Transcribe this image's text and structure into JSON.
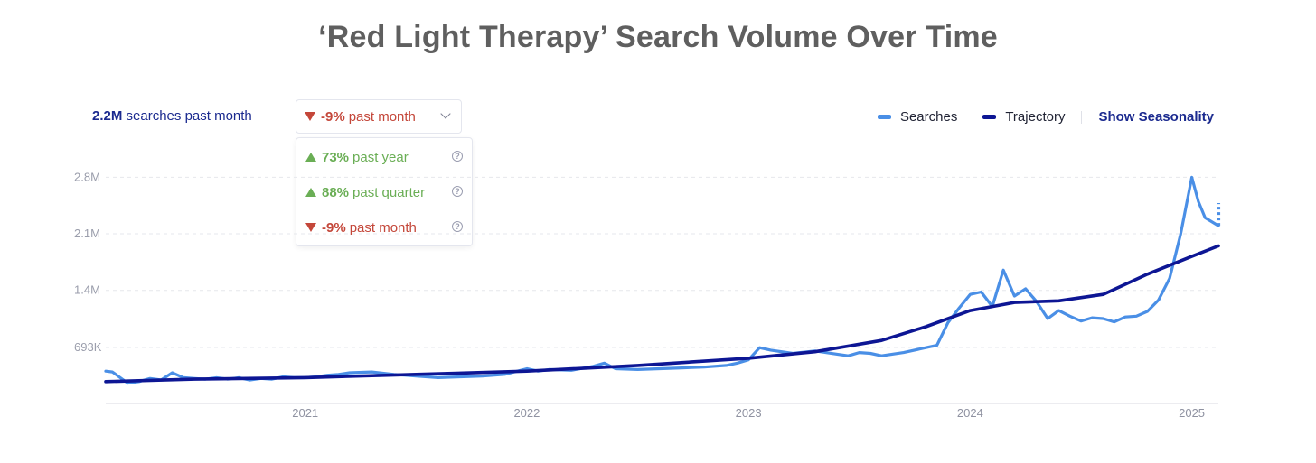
{
  "title": "‘Red Light Therapy’ Search Volume Over Time",
  "summary": {
    "searches_value": "2.2M",
    "searches_label": "searches past month",
    "selected_period": {
      "pct": "-9%",
      "label": "past month",
      "direction": "down"
    }
  },
  "period_options": [
    {
      "pct": "73%",
      "label": "past year",
      "direction": "up"
    },
    {
      "pct": "88%",
      "label": "past quarter",
      "direction": "up"
    },
    {
      "pct": "-9%",
      "label": "past month",
      "direction": "down"
    }
  ],
  "legend": {
    "searches": "Searches",
    "trajectory": "Trajectory",
    "show_seasonality": "Show Seasonality"
  },
  "colors": {
    "searches": "#4a8fe6",
    "trajectory": "#0d1694",
    "up": "#6aae55",
    "down": "#c4473a",
    "accent": "#1b2a8f"
  },
  "chart_data": {
    "type": "line",
    "title": "‘Red Light Therapy’ Search Volume Over Time",
    "xlabel": "",
    "ylabel": "",
    "xlim": [
      2020.1,
      2025.12
    ],
    "ylim": [
      0,
      3000000
    ],
    "y_ticks": [
      {
        "value": 693000,
        "label": "693K"
      },
      {
        "value": 1400000,
        "label": "1.4M"
      },
      {
        "value": 2100000,
        "label": "2.1M"
      },
      {
        "value": 2800000,
        "label": "2.8M"
      }
    ],
    "x_ticks": [
      {
        "value": 2021,
        "label": "2021"
      },
      {
        "value": 2022,
        "label": "2022"
      },
      {
        "value": 2023,
        "label": "2023"
      },
      {
        "value": 2024,
        "label": "2024"
      },
      {
        "value": 2025,
        "label": "2025"
      }
    ],
    "grid": true,
    "legend_position": "top-right",
    "series": [
      {
        "name": "Searches",
        "x": [
          2020.1,
          2020.13,
          2020.16,
          2020.2,
          2020.25,
          2020.3,
          2020.35,
          2020.4,
          2020.45,
          2020.5,
          2020.55,
          2020.6,
          2020.65,
          2020.7,
          2020.75,
          2020.8,
          2020.85,
          2020.9,
          2020.95,
          2021.0,
          2021.05,
          2021.1,
          2021.15,
          2021.2,
          2021.3,
          2021.4,
          2021.5,
          2021.6,
          2021.7,
          2021.8,
          2021.9,
          2022.0,
          2022.05,
          2022.1,
          2022.2,
          2022.3,
          2022.35,
          2022.4,
          2022.5,
          2022.6,
          2022.7,
          2022.8,
          2022.9,
          2022.95,
          2023.0,
          2023.05,
          2023.1,
          2023.2,
          2023.3,
          2023.4,
          2023.45,
          2023.5,
          2023.55,
          2023.6,
          2023.7,
          2023.8,
          2023.85,
          2023.9,
          2023.95,
          2024.0,
          2024.05,
          2024.1,
          2024.15,
          2024.2,
          2024.25,
          2024.3,
          2024.35,
          2024.4,
          2024.45,
          2024.5,
          2024.55,
          2024.6,
          2024.65,
          2024.7,
          2024.75,
          2024.8,
          2024.85,
          2024.9,
          2024.95,
          2025.0,
          2025.03,
          2025.06,
          2025.09,
          2025.12
        ],
        "y": [
          400000,
          390000,
          330000,
          250000,
          270000,
          310000,
          290000,
          380000,
          320000,
          310000,
          300000,
          320000,
          300000,
          320000,
          290000,
          310000,
          300000,
          330000,
          320000,
          320000,
          330000,
          350000,
          360000,
          380000,
          390000,
          360000,
          340000,
          320000,
          330000,
          340000,
          360000,
          430000,
          400000,
          420000,
          410000,
          460000,
          500000,
          430000,
          420000,
          430000,
          440000,
          450000,
          470000,
          500000,
          540000,
          690000,
          660000,
          620000,
          650000,
          610000,
          590000,
          630000,
          620000,
          590000,
          630000,
          690000,
          720000,
          1000000,
          1180000,
          1350000,
          1380000,
          1200000,
          1650000,
          1330000,
          1420000,
          1260000,
          1050000,
          1150000,
          1080000,
          1020000,
          1060000,
          1050000,
          1010000,
          1070000,
          1080000,
          1140000,
          1280000,
          1550000,
          2100000,
          2800000,
          2500000,
          2300000,
          2250000,
          2200000
        ]
      },
      {
        "name": "Trajectory",
        "x": [
          2020.1,
          2020.5,
          2021.0,
          2021.5,
          2022.0,
          2022.5,
          2023.0,
          2023.3,
          2023.6,
          2023.8,
          2024.0,
          2024.2,
          2024.4,
          2024.6,
          2024.8,
          2025.0,
          2025.12
        ],
        "y": [
          270000,
          300000,
          320000,
          360000,
          400000,
          470000,
          560000,
          640000,
          780000,
          950000,
          1150000,
          1250000,
          1270000,
          1350000,
          1600000,
          1820000,
          1950000
        ]
      }
    ],
    "forecast": {
      "x": [
        2025.12,
        2025.13
      ],
      "y": [
        2200000,
        2480000
      ]
    }
  }
}
